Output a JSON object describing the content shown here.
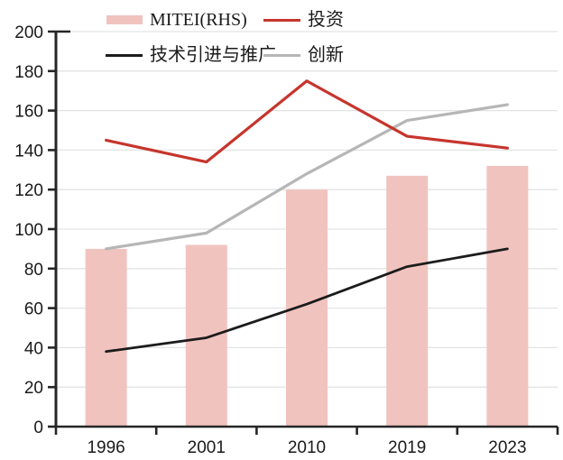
{
  "chart_data": {
    "type": "combo-bar-line",
    "title": "",
    "xlabel": "",
    "ylabel": "",
    "categories": [
      "1996",
      "2001",
      "2010",
      "2019",
      "2023"
    ],
    "bar_series": {
      "name": "MITEI(RHS)",
      "values": [
        90,
        92,
        120,
        127,
        132
      ],
      "color": "#f1c3bf"
    },
    "line_series": [
      {
        "name": "投资",
        "values": [
          145,
          134,
          175,
          147,
          141
        ],
        "color": "#c6352d",
        "width": 3.2
      },
      {
        "name": "技术引进与推广",
        "values": [
          38,
          45,
          62,
          81,
          90
        ],
        "color": "#1c1c1c",
        "width": 2.8
      },
      {
        "name": "创新",
        "values": [
          90,
          98,
          128,
          155,
          163
        ],
        "color": "#b6b6b6",
        "width": 3.2
      }
    ],
    "ylim": [
      0,
      200
    ],
    "yticks": [
      0,
      20,
      40,
      60,
      80,
      100,
      120,
      140,
      160,
      180,
      200
    ],
    "grid": true,
    "legend_position": "top",
    "colors": {
      "axis": "#262626",
      "grid": "#e3e3e3",
      "tick_text": "#1a1a1a"
    }
  }
}
